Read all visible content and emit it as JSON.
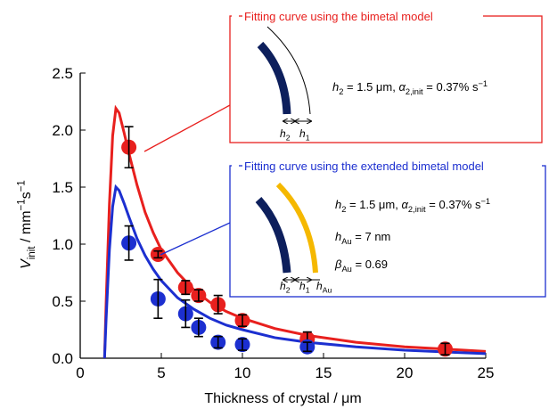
{
  "chart_data": {
    "type": "scatter",
    "xlabel": "Thickness of crystal / μm",
    "ylabel": [
      {
        "text": "V",
        "style": "i"
      },
      {
        "text": "init",
        "style": "sub"
      },
      {
        "text": " / mm",
        "style": "n"
      },
      {
        "text": "−1",
        "style": "sup"
      },
      {
        "text": "s",
        "style": "n"
      },
      {
        "text": "−1",
        "style": "sup"
      }
    ],
    "xlim": [
      0,
      25
    ],
    "ylim": [
      0,
      2.5
    ],
    "xticks": [
      0,
      5,
      10,
      15,
      20,
      25
    ],
    "yticks": [
      {
        "value": 0,
        "label": "0.0"
      },
      0.5,
      {
        "value": 1,
        "label": "1.0"
      },
      1.5,
      {
        "value": 2,
        "label": "2.0"
      },
      2.5
    ],
    "series": [
      {
        "color": "#e8201e",
        "x": [
          3.0,
          4.8,
          6.5,
          7.3,
          8.5,
          10.0,
          14.0,
          22.5
        ],
        "values": [
          1.85,
          0.91,
          0.62,
          0.55,
          0.47,
          0.33,
          0.17,
          0.08
        ],
        "errors": [
          0.18,
          0.03,
          0.06,
          0.05,
          0.08,
          0.05,
          0.06,
          0.05
        ]
      },
      {
        "color": "#1c2fd0",
        "x": [
          3.0,
          4.8,
          6.5,
          7.3,
          8.5,
          10.0,
          14.0
        ],
        "values": [
          1.01,
          0.52,
          0.39,
          0.27,
          0.14,
          0.12,
          0.1
        ],
        "errors": [
          0.15,
          0.17,
          0.12,
          0.08,
          0.05,
          0.05,
          0.04
        ]
      }
    ],
    "curves": [
      {
        "color": "#e8201e",
        "x": [
          1.5,
          1.6,
          1.8,
          2.0,
          2.2,
          2.4,
          2.7,
          3.0,
          3.5,
          4,
          4.5,
          5,
          6,
          7,
          8,
          9,
          10,
          12,
          14,
          17,
          20,
          25
        ],
        "values": [
          0,
          0.5,
          1.35,
          1.95,
          2.19,
          2.15,
          1.98,
          1.8,
          1.52,
          1.28,
          1.1,
          0.95,
          0.75,
          0.6,
          0.49,
          0.41,
          0.35,
          0.26,
          0.2,
          0.14,
          0.1,
          0.06
        ]
      },
      {
        "color": "#1c2fd0",
        "x": [
          1.5,
          1.6,
          1.8,
          2.0,
          2.2,
          2.4,
          2.7,
          3.0,
          3.5,
          4,
          4.5,
          5,
          6,
          7,
          8,
          9,
          10,
          12,
          14,
          17,
          20,
          25
        ],
        "values": [
          0,
          0.35,
          0.95,
          1.33,
          1.5,
          1.47,
          1.36,
          1.24,
          1.05,
          0.9,
          0.78,
          0.68,
          0.53,
          0.43,
          0.35,
          0.29,
          0.25,
          0.18,
          0.14,
          0.1,
          0.07,
          0.04
        ]
      }
    ],
    "annotations": [
      {
        "title": "Fitting curve using the bimetal model",
        "color": "#e8201e",
        "lines": [
          [
            {
              "text": "h",
              "style": "i"
            },
            {
              "text": "2",
              "style": "sub"
            },
            {
              "text": " = 1.5 μm, ",
              "style": "n"
            },
            {
              "text": "α",
              "style": "i"
            },
            {
              "text": "2,init",
              "style": "sub"
            },
            {
              "text": " = 0.37% s",
              "style": "n"
            },
            {
              "text": "−1",
              "style": "sup"
            }
          ]
        ],
        "dims": [
          [
            {
              "text": "h",
              "style": "i"
            },
            {
              "text": "2",
              "style": "sub"
            }
          ],
          [
            {
              "text": "h",
              "style": "i"
            },
            {
              "text": "1",
              "style": "sub"
            }
          ]
        ]
      },
      {
        "title": "Fitting curve using the extended bimetal model",
        "color": "#1c2fd0",
        "lines": [
          [
            {
              "text": "h",
              "style": "i"
            },
            {
              "text": "2",
              "style": "sub"
            },
            {
              "text": " = 1.5 μm, ",
              "style": "n"
            },
            {
              "text": "α",
              "style": "i"
            },
            {
              "text": "2,init",
              "style": "sub"
            },
            {
              "text": " = 0.37% s",
              "style": "n"
            },
            {
              "text": "−1",
              "style": "sup"
            }
          ],
          [
            {
              "text": "h",
              "style": "i"
            },
            {
              "text": "Au",
              "style": "sub"
            },
            {
              "text": " = 7 nm",
              "style": "n"
            }
          ],
          [
            {
              "text": "β",
              "style": "i"
            },
            {
              "text": "Au",
              "style": "sub"
            },
            {
              "text": " = 0.69",
              "style": "n"
            }
          ]
        ],
        "dims": [
          [
            {
              "text": "h",
              "style": "i"
            },
            {
              "text": "2",
              "style": "sub"
            }
          ],
          [
            {
              "text": "h",
              "style": "i"
            },
            {
              "text": "1",
              "style": "sub"
            }
          ],
          [
            {
              "text": "h",
              "style": "i"
            },
            {
              "text": "Au",
              "style": "sub"
            }
          ]
        ]
      }
    ]
  }
}
